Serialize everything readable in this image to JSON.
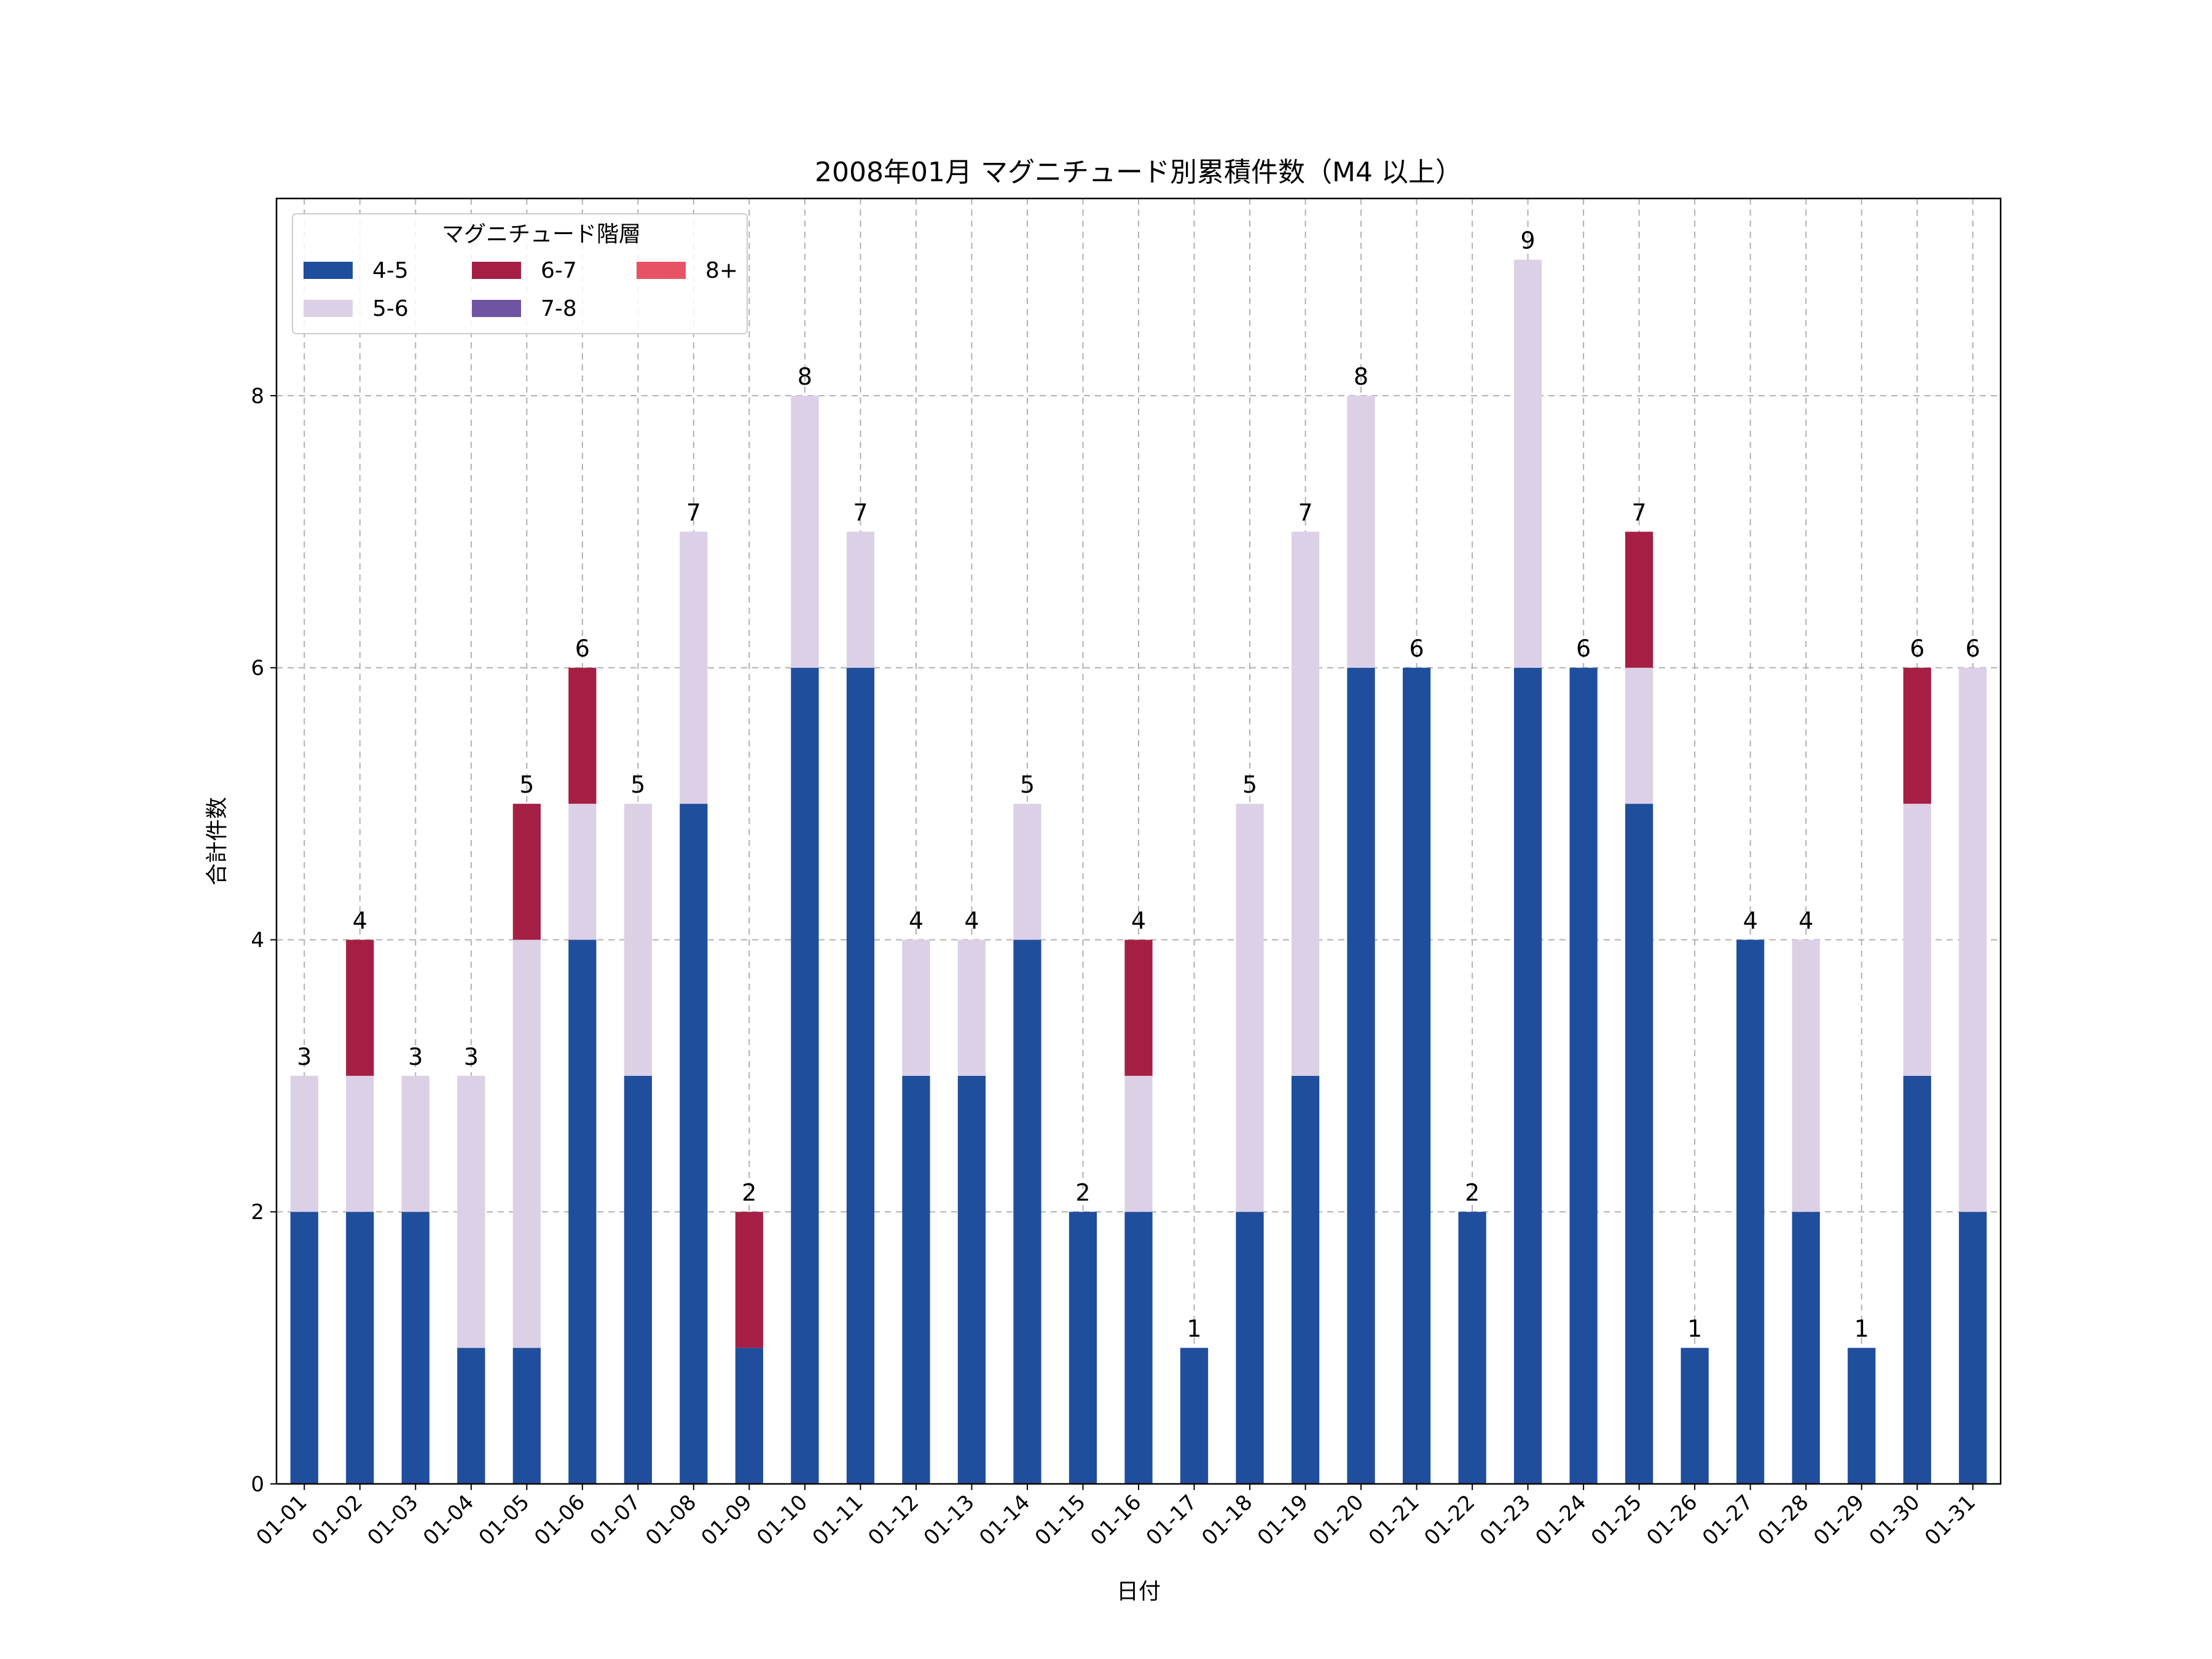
{
  "chart_data": {
    "type": "bar",
    "stacked": true,
    "title": "2008年01月 マグニチュード別累積件数（M4 以上）",
    "xlabel": "日付",
    "ylabel": "合計件数",
    "ylim": [
      0,
      9.45
    ],
    "yticks": [
      0,
      2,
      4,
      6,
      8
    ],
    "grid": true,
    "legend": {
      "title": "マグニチュード階層",
      "placement": "top-left",
      "columns": 3
    },
    "categories": [
      "01-01",
      "01-02",
      "01-03",
      "01-04",
      "01-05",
      "01-06",
      "01-07",
      "01-08",
      "01-09",
      "01-10",
      "01-11",
      "01-12",
      "01-13",
      "01-14",
      "01-15",
      "01-16",
      "01-17",
      "01-18",
      "01-19",
      "01-20",
      "01-21",
      "01-22",
      "01-23",
      "01-24",
      "01-25",
      "01-26",
      "01-27",
      "01-28",
      "01-29",
      "01-30",
      "01-31"
    ],
    "series": [
      {
        "name": "4-5",
        "color": "#1f4e9c",
        "values": [
          2,
          2,
          2,
          1,
          1,
          4,
          3,
          5,
          1,
          6,
          6,
          3,
          3,
          4,
          2,
          2,
          1,
          2,
          3,
          6,
          6,
          2,
          6,
          6,
          5,
          1,
          4,
          2,
          1,
          3,
          2
        ]
      },
      {
        "name": "5-6",
        "color": "#dcd0e6",
        "values": [
          1,
          1,
          1,
          2,
          3,
          1,
          2,
          2,
          0,
          2,
          1,
          1,
          1,
          1,
          0,
          1,
          0,
          3,
          4,
          2,
          0,
          0,
          3,
          0,
          1,
          0,
          0,
          2,
          0,
          2,
          4
        ]
      },
      {
        "name": "6-7",
        "color": "#a51f45",
        "values": [
          0,
          1,
          0,
          0,
          1,
          1,
          0,
          0,
          1,
          0,
          0,
          0,
          0,
          0,
          0,
          1,
          0,
          0,
          0,
          0,
          0,
          0,
          0,
          0,
          1,
          0,
          0,
          0,
          0,
          1,
          0
        ]
      },
      {
        "name": "7-8",
        "color": "#6f54a3",
        "values": [
          0,
          0,
          0,
          0,
          0,
          0,
          0,
          0,
          0,
          0,
          0,
          0,
          0,
          0,
          0,
          0,
          0,
          0,
          0,
          0,
          0,
          0,
          0,
          0,
          0,
          0,
          0,
          0,
          0,
          0,
          0
        ]
      },
      {
        "name": "8+",
        "color": "#e85265",
        "values": [
          0,
          0,
          0,
          0,
          0,
          0,
          0,
          0,
          0,
          0,
          0,
          0,
          0,
          0,
          0,
          0,
          0,
          0,
          0,
          0,
          0,
          0,
          0,
          0,
          0,
          0,
          0,
          0,
          0,
          0,
          0
        ]
      }
    ],
    "totals": [
      3,
      4,
      3,
      3,
      5,
      6,
      5,
      7,
      2,
      8,
      7,
      4,
      4,
      5,
      2,
      4,
      1,
      5,
      7,
      8,
      6,
      2,
      9,
      6,
      7,
      1,
      4,
      4,
      1,
      6,
      6
    ]
  }
}
